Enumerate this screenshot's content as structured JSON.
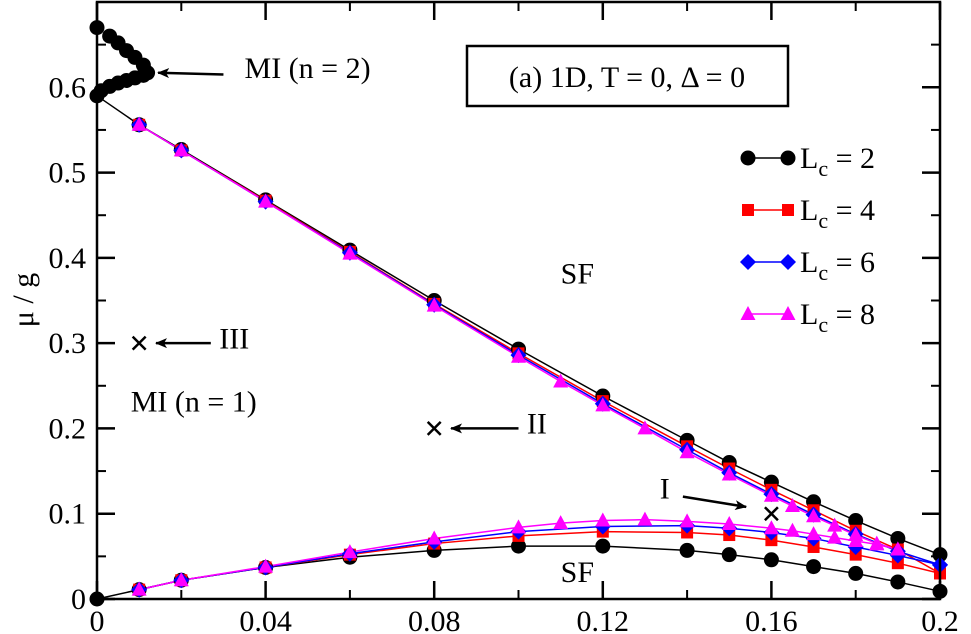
{
  "chart_data": {
    "type": "scatter",
    "xlabel": "",
    "ylabel": "μ / g",
    "xlim": [
      0,
      0.2
    ],
    "ylim": [
      0,
      0.7
    ],
    "x_ticks": [
      {
        "value": 0,
        "label": "0"
      },
      {
        "value": 0.04,
        "label": "0.04"
      },
      {
        "value": 0.08,
        "label": "0.08"
      },
      {
        "value": 0.12,
        "label": "0.12"
      },
      {
        "value": 0.16,
        "label": "0.16"
      },
      {
        "value": 0.2,
        "label": "0.2"
      }
    ],
    "y_ticks": [
      {
        "value": 0,
        "label": "0"
      },
      {
        "value": 0.1,
        "label": "0.1"
      },
      {
        "value": 0.2,
        "label": "0.2"
      },
      {
        "value": 0.3,
        "label": "0.3"
      },
      {
        "value": 0.4,
        "label": "0.4"
      },
      {
        "value": 0.5,
        "label": "0.5"
      },
      {
        "value": 0.6,
        "label": "0.6"
      }
    ],
    "grid": false,
    "legend_placement": "top-right",
    "title_box": "(a) 1D, T = 0, Δ = 0",
    "series": [
      {
        "name": "L",
        "name_sub": "c",
        "name_suffix": " = 2",
        "color": "#000000",
        "marker": "circle",
        "upper": [
          [
            0,
            0.59
          ],
          [
            0.01,
            0.556
          ],
          [
            0.02,
            0.527
          ],
          [
            0.04,
            0.468
          ],
          [
            0.06,
            0.409
          ],
          [
            0.08,
            0.35
          ],
          [
            0.1,
            0.293
          ],
          [
            0.12,
            0.238
          ],
          [
            0.14,
            0.186
          ],
          [
            0.15,
            0.16
          ],
          [
            0.16,
            0.137
          ],
          [
            0.17,
            0.114
          ],
          [
            0.18,
            0.092
          ],
          [
            0.19,
            0.071
          ],
          [
            0.2,
            0.052
          ]
        ],
        "lower": [
          [
            0,
            0
          ],
          [
            0.01,
            0.011
          ],
          [
            0.02,
            0.022
          ],
          [
            0.04,
            0.037
          ],
          [
            0.06,
            0.049
          ],
          [
            0.08,
            0.057
          ],
          [
            0.1,
            0.062
          ],
          [
            0.12,
            0.062
          ],
          [
            0.14,
            0.057
          ],
          [
            0.15,
            0.052
          ],
          [
            0.16,
            0.046
          ],
          [
            0.17,
            0.038
          ],
          [
            0.18,
            0.03
          ],
          [
            0.19,
            0.02
          ],
          [
            0.2,
            0.009
          ]
        ],
        "extra_points": [
          [
            0,
            0.67
          ],
          [
            0.003,
            0.66
          ],
          [
            0.005,
            0.652
          ],
          [
            0.007,
            0.643
          ],
          [
            0.009,
            0.635
          ],
          [
            0.011,
            0.626
          ],
          [
            0.012,
            0.617
          ],
          [
            0.011,
            0.614
          ],
          [
            0.009,
            0.611
          ],
          [
            0.007,
            0.608
          ],
          [
            0.005,
            0.605
          ],
          [
            0.003,
            0.601
          ],
          [
            0.001,
            0.596
          ]
        ]
      },
      {
        "name": "L",
        "name_sub": "c",
        "name_suffix": " = 4",
        "color": "#ff0000",
        "marker": "square",
        "upper": [
          [
            0.01,
            0.556
          ],
          [
            0.02,
            0.526
          ],
          [
            0.04,
            0.467
          ],
          [
            0.06,
            0.407
          ],
          [
            0.08,
            0.346
          ],
          [
            0.1,
            0.288
          ],
          [
            0.12,
            0.232
          ],
          [
            0.14,
            0.179
          ],
          [
            0.15,
            0.153
          ],
          [
            0.16,
            0.128
          ],
          [
            0.17,
            0.104
          ],
          [
            0.18,
            0.08
          ],
          [
            0.19,
            0.058
          ],
          [
            0.2,
            0.03
          ]
        ],
        "lower": [
          [
            0.01,
            0.011
          ],
          [
            0.02,
            0.022
          ],
          [
            0.04,
            0.037
          ],
          [
            0.06,
            0.052
          ],
          [
            0.08,
            0.065
          ],
          [
            0.1,
            0.074
          ],
          [
            0.12,
            0.079
          ],
          [
            0.14,
            0.078
          ],
          [
            0.15,
            0.075
          ],
          [
            0.16,
            0.069
          ],
          [
            0.17,
            0.061
          ],
          [
            0.18,
            0.052
          ],
          [
            0.19,
            0.042
          ],
          [
            0.2,
            0.03
          ]
        ],
        "extra_points": []
      },
      {
        "name": "L",
        "name_sub": "c",
        "name_suffix": " = 6",
        "color": "#0000ff",
        "marker": "diamond",
        "upper": [
          [
            0.01,
            0.556
          ],
          [
            0.02,
            0.526
          ],
          [
            0.04,
            0.466
          ],
          [
            0.06,
            0.406
          ],
          [
            0.08,
            0.345
          ],
          [
            0.1,
            0.286
          ],
          [
            0.12,
            0.229
          ],
          [
            0.14,
            0.175
          ],
          [
            0.15,
            0.148
          ],
          [
            0.16,
            0.123
          ],
          [
            0.17,
            0.099
          ],
          [
            0.18,
            0.076
          ],
          [
            0.19,
            0.056
          ],
          [
            0.2,
            0.04
          ]
        ],
        "lower": [
          [
            0.01,
            0.011
          ],
          [
            0.02,
            0.022
          ],
          [
            0.04,
            0.037
          ],
          [
            0.06,
            0.053
          ],
          [
            0.08,
            0.067
          ],
          [
            0.1,
            0.079
          ],
          [
            0.12,
            0.085
          ],
          [
            0.14,
            0.086
          ],
          [
            0.15,
            0.083
          ],
          [
            0.16,
            0.078
          ],
          [
            0.17,
            0.071
          ],
          [
            0.18,
            0.061
          ],
          [
            0.19,
            0.051
          ],
          [
            0.2,
            0.04
          ]
        ],
        "extra_points": []
      },
      {
        "name": "L",
        "name_sub": "c",
        "name_suffix": " = 8",
        "color": "#ff00ff",
        "marker": "triangle",
        "upper": [
          [
            0.01,
            0.556
          ],
          [
            0.02,
            0.526
          ],
          [
            0.04,
            0.466
          ],
          [
            0.06,
            0.405
          ],
          [
            0.08,
            0.344
          ],
          [
            0.1,
            0.284
          ],
          [
            0.11,
            0.255
          ],
          [
            0.12,
            0.227
          ],
          [
            0.13,
            0.2
          ],
          [
            0.14,
            0.172
          ],
          [
            0.15,
            0.146
          ],
          [
            0.16,
            0.121
          ],
          [
            0.165,
            0.109
          ],
          [
            0.17,
            0.097
          ],
          [
            0.175,
            0.086
          ],
          [
            0.18,
            0.075
          ],
          [
            0.185,
            0.065
          ],
          [
            0.19,
            0.058
          ]
        ],
        "lower": [
          [
            0.01,
            0.011
          ],
          [
            0.02,
            0.022
          ],
          [
            0.04,
            0.038
          ],
          [
            0.06,
            0.055
          ],
          [
            0.08,
            0.071
          ],
          [
            0.1,
            0.084
          ],
          [
            0.11,
            0.089
          ],
          [
            0.12,
            0.092
          ],
          [
            0.13,
            0.093
          ],
          [
            0.14,
            0.091
          ],
          [
            0.15,
            0.088
          ],
          [
            0.16,
            0.083
          ],
          [
            0.165,
            0.08
          ],
          [
            0.17,
            0.076
          ],
          [
            0.175,
            0.072
          ],
          [
            0.18,
            0.068
          ],
          [
            0.185,
            0.064
          ],
          [
            0.19,
            0.058
          ]
        ],
        "extra_points": []
      }
    ],
    "annotations": [
      {
        "id": "mi-n2",
        "text": "MI (n = 2)",
        "x": 0.035,
        "y": 0.611,
        "arrow_from": [
          0.03,
          0.615
        ],
        "arrow_to": [
          0.0145,
          0.617
        ]
      },
      {
        "id": "sf-upper",
        "text": "SF",
        "x": 0.11,
        "y": 0.37
      },
      {
        "id": "sf-lower",
        "text": "SF",
        "x": 0.11,
        "y": 0.02
      },
      {
        "id": "mi-n1",
        "text": "MI (n = 1)",
        "x": 0.008,
        "y": 0.22
      },
      {
        "id": "iii",
        "text": "III",
        "x": 0.029,
        "y": 0.294,
        "arrow_from": [
          0.027,
          0.3
        ],
        "arrow_to": [
          0.014,
          0.3
        ]
      },
      {
        "id": "ii",
        "text": "II",
        "x": 0.102,
        "y": 0.194,
        "arrow_from": [
          0.1,
          0.2
        ],
        "arrow_to": [
          0.084,
          0.2
        ]
      },
      {
        "id": "i",
        "text": "I",
        "x": 0.1335,
        "y": 0.118,
        "arrow_from": [
          0.139,
          0.12
        ],
        "arrow_to": [
          0.154,
          0.108
        ]
      }
    ],
    "crosses": [
      {
        "id": "state-iii",
        "label": "III",
        "x": 0.01,
        "y": 0.3
      },
      {
        "id": "state-ii",
        "label": "II",
        "x": 0.08,
        "y": 0.2
      },
      {
        "id": "state-i",
        "label": "I",
        "x": 0.16,
        "y": 0.1
      }
    ]
  }
}
